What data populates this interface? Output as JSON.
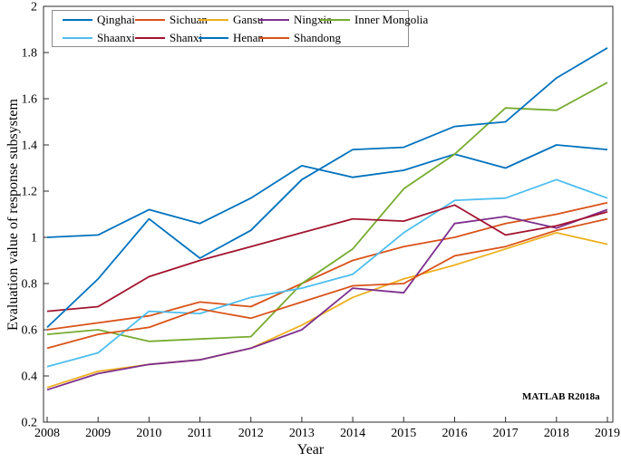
{
  "figure": {
    "watermark": "MATLAB R2018a"
  },
  "chart_data": {
    "type": "line",
    "title": "",
    "xlabel": "Year",
    "ylabel": "Evaluation value of response subsystem",
    "x": [
      2008,
      2009,
      2010,
      2011,
      2012,
      2013,
      2014,
      2015,
      2016,
      2017,
      2018,
      2019
    ],
    "xlim": [
      2008,
      2019
    ],
    "ylim": [
      0.2,
      2.0
    ],
    "yticks": [
      0.2,
      0.4,
      0.6,
      0.8,
      1.0,
      1.2,
      1.4,
      1.6,
      1.8,
      2.0
    ],
    "ytick_labels": [
      "0.2",
      "0.4",
      "0.6",
      "0.8",
      "1",
      "1.2",
      "1.4",
      "1.6",
      "1.8",
      "2"
    ],
    "grid": false,
    "legend_position": "inside-top",
    "legend_rows": [
      [
        "Qinghai",
        "Sichuan",
        "Gansu",
        "Ningxia",
        "Inner Mongolia"
      ],
      [
        "Shaanxi",
        "Shanxi",
        "Henan",
        "Shandong"
      ]
    ],
    "series": [
      {
        "name": "Qinghai",
        "color": "#0072BD",
        "values": [
          1.0,
          1.01,
          1.12,
          1.06,
          1.17,
          1.31,
          1.26,
          1.29,
          1.36,
          1.3,
          1.4,
          1.38
        ]
      },
      {
        "name": "Sichuan",
        "color": "#D95319",
        "values": [
          0.6,
          0.63,
          0.66,
          0.72,
          0.7,
          0.8,
          0.9,
          0.96,
          1.0,
          1.06,
          1.1,
          1.15
        ]
      },
      {
        "name": "Gansu",
        "color": "#EDB120",
        "values": [
          0.35,
          0.42,
          0.45,
          0.47,
          0.52,
          0.62,
          0.74,
          0.82,
          0.88,
          0.95,
          1.02,
          0.97
        ]
      },
      {
        "name": "Ningxia",
        "color": "#7E2F8E",
        "values": [
          0.34,
          0.41,
          0.45,
          0.47,
          0.52,
          0.6,
          0.78,
          0.76,
          1.06,
          1.09,
          1.04,
          1.12
        ]
      },
      {
        "name": "Inner Mongolia",
        "color": "#77AC30",
        "values": [
          0.58,
          0.6,
          0.55,
          0.56,
          0.57,
          0.8,
          0.95,
          1.21,
          1.36,
          1.56,
          1.55,
          1.67
        ]
      },
      {
        "name": "Shaanxi",
        "color": "#4DBEEE",
        "values": [
          0.44,
          0.5,
          0.68,
          0.67,
          0.74,
          0.78,
          0.84,
          1.02,
          1.16,
          1.17,
          1.25,
          1.17
        ]
      },
      {
        "name": "Shanxi",
        "color": "#A2142F",
        "values": [
          0.68,
          0.7,
          0.83,
          0.9,
          0.96,
          1.02,
          1.08,
          1.07,
          1.14,
          1.01,
          1.05,
          1.11
        ]
      },
      {
        "name": "Henan",
        "color": "#0072BD",
        "values": [
          0.61,
          0.82,
          1.08,
          0.91,
          1.03,
          1.25,
          1.38,
          1.39,
          1.48,
          1.5,
          1.69,
          1.82
        ]
      },
      {
        "name": "Shandong",
        "color": "#D95319",
        "values": [
          0.52,
          0.58,
          0.61,
          0.69,
          0.65,
          0.72,
          0.79,
          0.8,
          0.92,
          0.96,
          1.03,
          1.08
        ]
      }
    ]
  }
}
